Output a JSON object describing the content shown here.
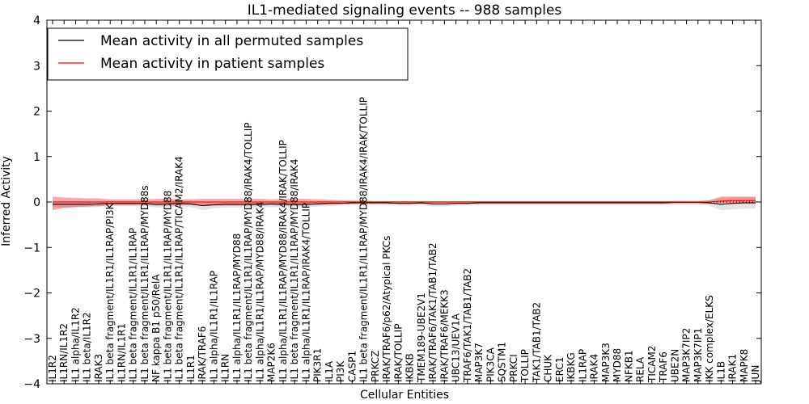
{
  "chart_data": {
    "type": "line",
    "title": "IL1-mediated signaling events -- 988 samples",
    "xlabel": "Cellular Entities",
    "ylabel": "Inferred Activity",
    "ylim": [
      -4,
      4
    ],
    "yticks": [
      -4,
      -3,
      -2,
      -1,
      0,
      1,
      2,
      3,
      4
    ],
    "ytick_labels": [
      "−4",
      "−3",
      "−2",
      "−1",
      "0",
      "1",
      "2",
      "3",
      "4"
    ],
    "grid": false,
    "legend_position": "top-left",
    "categories": [
      "IL1R2",
      "IL1RN/IL1R2",
      "IL1 alpha/IL1R2",
      "IL1 beta/IL1R2",
      "IRAK3",
      "IL1 beta fragment/IL1R1/IL1RAP/PI3K",
      "IL1RN/IL1R1",
      "IL1 beta fragment/IL1R1/IL1RAP",
      "IL1 beta fragment/IL1R1/IL1RAP/MYD88s",
      "NF kappa B1 p50/RelA",
      "IL1 beta fragment/IL1R1/IL1RAP/MYD88",
      "IL1 beta fragment/IL1R1/IL1RAP/TICAM2/IRAK4",
      "IL1R1",
      "IRAK/TRAF6",
      "IL1 alpha/IL1R1/IL1RAP",
      "IL1RN",
      "IL1 alpha/IL1R1/IL1RAP/MYD88",
      "IL1 beta fragment/IL1R1/IL1RAP/MYD88/IRAK4/TOLLIP",
      "IL1 alpha/IL1R1/IL1RAP/MYD88/IRAK4",
      "MAP2K6",
      "IL1 alpha/IL1R1/IL1RAP/MYD88/IRAK4/IRAK/TOLLIP",
      "IL1 beta fragment/IL1R1/IL1RAP/MYD88/IRAK4",
      "IL1 alpha/IL1R1/IL1RAP/IRAK4/TOLLIP",
      "PIK3R1",
      "IL1A",
      "PI3K",
      "CASP1",
      "IL1 beta fragment/IL1R1/IL1RAP/MYD88/IRAK4/IRAK/TOLLIP",
      "PRKCZ",
      "IRAK/TRAF6/p62/Atypical PKCs",
      "IRAK/TOLLIP",
      "IKBKB",
      "TMEM189-UBE2V1",
      "IRAK/TRAF6/TAK1/TAB1/TAB2",
      "IRAK/TRAF6/MEKK3",
      "UBC13/UEV1A",
      "TRAF6/TAK1/TAB1/TAB2",
      "MAP3K7",
      "PIK3CA",
      "SQSTM1",
      "PRKCI",
      "TOLLIP",
      "TAK1/TAB1/TAB2",
      "CHUK",
      "ERC1",
      "IKBKG",
      "IL1RAP",
      "IRAK4",
      "MAP3K3",
      "MYD88",
      "NFKB1",
      "RELA",
      "TICAM2",
      "TRAF6",
      "UBE2N",
      "MAP3K7IP2",
      "MAP3K7IP1",
      "IKK complex/ELKS",
      "IL1B",
      "IRAK1",
      "MAPK8",
      "JUN"
    ],
    "series": [
      {
        "name": "Mean activity in all permuted samples",
        "color": "#000000",
        "values": [
          -0.05,
          -0.05,
          -0.05,
          -0.05,
          -0.04,
          -0.03,
          -0.03,
          -0.03,
          -0.03,
          -0.05,
          -0.04,
          -0.03,
          -0.04,
          -0.08,
          -0.06,
          -0.05,
          -0.05,
          -0.05,
          -0.05,
          -0.04,
          -0.05,
          -0.05,
          -0.05,
          -0.04,
          -0.03,
          -0.03,
          -0.02,
          -0.02,
          -0.02,
          -0.02,
          -0.03,
          -0.03,
          -0.02,
          -0.04,
          -0.04,
          -0.03,
          -0.03,
          -0.02,
          -0.02,
          -0.02,
          -0.02,
          -0.02,
          -0.02,
          -0.02,
          -0.02,
          -0.02,
          -0.02,
          -0.02,
          -0.02,
          -0.02,
          -0.02,
          -0.02,
          -0.02,
          -0.02,
          -0.01,
          -0.01,
          -0.01,
          -0.02,
          -0.05,
          -0.03,
          -0.02,
          -0.02
        ],
        "band_low": [
          -0.12,
          -0.12,
          -0.12,
          -0.12,
          -0.11,
          -0.09,
          -0.09,
          -0.09,
          -0.09,
          -0.12,
          -0.11,
          -0.1,
          -0.11,
          -0.18,
          -0.14,
          -0.12,
          -0.12,
          -0.12,
          -0.12,
          -0.11,
          -0.12,
          -0.12,
          -0.12,
          -0.1,
          -0.09,
          -0.08,
          -0.07,
          -0.07,
          -0.07,
          -0.07,
          -0.08,
          -0.08,
          -0.07,
          -0.1,
          -0.1,
          -0.08,
          -0.08,
          -0.07,
          -0.07,
          -0.07,
          -0.07,
          -0.07,
          -0.07,
          -0.07,
          -0.07,
          -0.07,
          -0.07,
          -0.07,
          -0.07,
          -0.07,
          -0.07,
          -0.07,
          -0.07,
          -0.07,
          -0.06,
          -0.06,
          -0.06,
          -0.08,
          -0.18,
          -0.16,
          -0.15,
          -0.14
        ],
        "band_high": [
          0.02,
          0.02,
          0.02,
          0.02,
          0.02,
          0.02,
          0.02,
          0.02,
          0.02,
          0.02,
          0.02,
          0.03,
          0.03,
          0.02,
          0.02,
          0.02,
          0.02,
          0.02,
          0.02,
          0.02,
          0.02,
          0.02,
          0.02,
          0.02,
          0.02,
          0.02,
          0.02,
          0.02,
          0.02,
          0.02,
          0.02,
          0.02,
          0.02,
          0.02,
          0.02,
          0.02,
          0.02,
          0.02,
          0.02,
          0.02,
          0.02,
          0.02,
          0.02,
          0.02,
          0.02,
          0.02,
          0.02,
          0.02,
          0.02,
          0.02,
          0.02,
          0.02,
          0.02,
          0.02,
          0.03,
          0.03,
          0.03,
          0.04,
          0.08,
          0.09,
          0.1,
          0.1
        ]
      },
      {
        "name": "Mean activity in patient samples",
        "color": "#ff0000",
        "values": [
          0.0,
          0.0,
          0.0,
          0.0,
          0.0,
          0.0,
          0.0,
          0.0,
          0.0,
          0.0,
          0.0,
          0.0,
          0.0,
          0.0,
          0.0,
          0.0,
          0.0,
          0.0,
          0.0,
          0.0,
          0.0,
          0.0,
          0.0,
          0.0,
          0.0,
          0.0,
          0.0,
          0.0,
          0.0,
          0.0,
          0.0,
          0.0,
          0.0,
          0.0,
          0.0,
          0.0,
          0.0,
          0.0,
          0.0,
          0.0,
          0.0,
          0.0,
          0.0,
          0.0,
          0.0,
          0.0,
          0.0,
          0.0,
          0.0,
          0.0,
          0.0,
          0.0,
          0.0,
          0.0,
          0.0,
          0.0,
          0.0,
          0.0,
          0.02,
          0.03,
          0.03,
          0.03
        ],
        "band_low": [
          -0.18,
          -0.13,
          -0.11,
          -0.1,
          -0.09,
          -0.07,
          -0.07,
          -0.07,
          -0.07,
          -0.08,
          -0.08,
          -0.07,
          -0.07,
          -0.09,
          -0.08,
          -0.08,
          -0.08,
          -0.08,
          -0.08,
          -0.07,
          -0.08,
          -0.08,
          -0.08,
          -0.06,
          -0.05,
          -0.04,
          -0.03,
          -0.03,
          -0.02,
          -0.02,
          -0.02,
          -0.02,
          -0.02,
          -0.02,
          -0.02,
          -0.02,
          -0.02,
          -0.02,
          -0.02,
          -0.02,
          -0.02,
          -0.02,
          -0.02,
          -0.02,
          -0.02,
          -0.02,
          -0.02,
          -0.02,
          -0.02,
          -0.02,
          -0.02,
          -0.02,
          -0.02,
          -0.02,
          -0.02,
          -0.02,
          -0.02,
          -0.03,
          -0.02,
          -0.02,
          -0.02,
          -0.02
        ],
        "band_high": [
          0.12,
          0.1,
          0.09,
          0.08,
          0.08,
          0.06,
          0.06,
          0.06,
          0.06,
          0.07,
          0.07,
          0.06,
          0.06,
          0.07,
          0.07,
          0.07,
          0.07,
          0.07,
          0.07,
          0.06,
          0.07,
          0.07,
          0.07,
          0.06,
          0.05,
          0.04,
          0.03,
          0.03,
          0.02,
          0.02,
          0.02,
          0.02,
          0.02,
          0.02,
          0.02,
          0.02,
          0.02,
          0.02,
          0.02,
          0.02,
          0.02,
          0.02,
          0.02,
          0.02,
          0.02,
          0.02,
          0.02,
          0.02,
          0.02,
          0.02,
          0.02,
          0.02,
          0.02,
          0.02,
          0.02,
          0.02,
          0.02,
          0.04,
          0.12,
          0.12,
          0.12,
          0.12
        ]
      }
    ]
  }
}
